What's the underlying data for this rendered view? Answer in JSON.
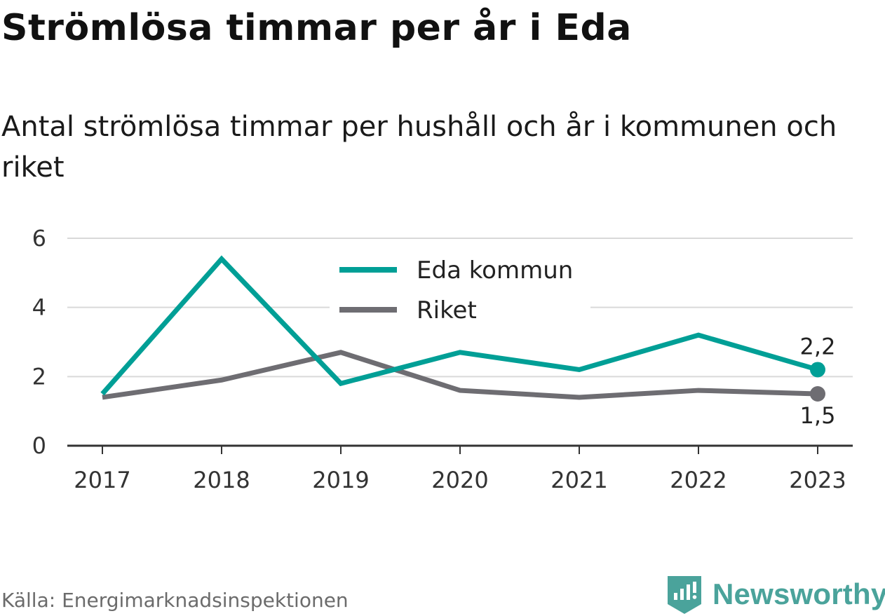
{
  "title": "Strömlösa timmar per år i Eda",
  "subtitle": "Antal strömlösa timmar per hushåll och år i kommunen och riket",
  "source": "Källa: Energimarknadsinspektionen",
  "brand": "Newsworthy",
  "colors": {
    "eda": "#009f96",
    "riket": "#6e6d72",
    "grid": "#d9d9d9",
    "axis": "#333333",
    "brand": "#4aa39b"
  },
  "chart_data": {
    "type": "line",
    "x": [
      "2017",
      "2018",
      "2019",
      "2020",
      "2021",
      "2022",
      "2023"
    ],
    "ylim": [
      0,
      6
    ],
    "yticks": [
      0,
      2,
      4,
      6
    ],
    "grid": true,
    "legend_position": "top-center",
    "series": [
      {
        "name": "Eda kommun",
        "values": [
          1.5,
          5.4,
          1.8,
          2.7,
          2.2,
          3.2,
          2.2
        ],
        "end_label": "2,2"
      },
      {
        "name": "Riket",
        "values": [
          1.4,
          1.9,
          2.7,
          1.6,
          1.4,
          1.6,
          1.5
        ],
        "end_label": "1,5"
      }
    ]
  }
}
